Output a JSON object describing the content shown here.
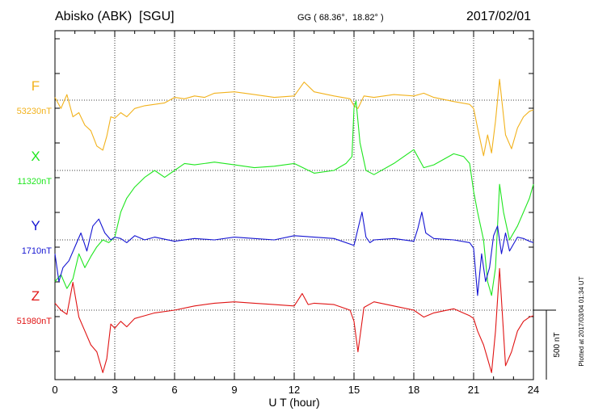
{
  "header": {
    "station": "Abisko (ABK)  [SGU]",
    "coords": "GG ( 68.36°,  18.82° )",
    "date": "2017/02/01"
  },
  "colors": {
    "F": "#f2b21c",
    "X": "#1fe61f",
    "Y": "#1414d2",
    "Z": "#e01414"
  },
  "chart_data": {
    "type": "line",
    "xlabel": "U T (hour)",
    "xlim": [
      0,
      24
    ],
    "xticks": [
      "0",
      "3",
      "6",
      "9",
      "12",
      "15",
      "18",
      "21",
      "24"
    ],
    "scale_bar": "500 nT",
    "plotted_note": "Plotted at 2017/03/04 01:34 UT",
    "series": [
      {
        "name": "F",
        "baseline_label": "53230nT",
        "color": "#f2b21c",
        "baseline_nT": 53230,
        "x": [
          0,
          0.3,
          0.6,
          0.9,
          1.2,
          1.5,
          1.8,
          2.1,
          2.4,
          2.6,
          2.8,
          3.0,
          3.3,
          3.6,
          4.0,
          4.5,
          5.0,
          5.5,
          6.0,
          6.5,
          7.0,
          7.5,
          8.0,
          9.0,
          10.0,
          11.0,
          12.0,
          12.5,
          13.0,
          14.0,
          14.8,
          15.0,
          15.2,
          15.5,
          16.0,
          17.0,
          18.0,
          18.5,
          19.0,
          20.0,
          20.8,
          21.0,
          21.2,
          21.5,
          21.7,
          21.9,
          22.1,
          22.3,
          22.6,
          22.9,
          23.2,
          23.5,
          23.8,
          24.0
        ],
        "y": [
          20,
          -60,
          40,
          -120,
          -90,
          -180,
          -220,
          -330,
          -360,
          -260,
          -120,
          -130,
          -90,
          -120,
          -60,
          -40,
          -30,
          -20,
          20,
          10,
          30,
          20,
          50,
          60,
          40,
          20,
          30,
          130,
          60,
          30,
          10,
          -40,
          -60,
          30,
          20,
          40,
          30,
          50,
          20,
          -10,
          -30,
          -60,
          -200,
          -400,
          -250,
          -380,
          -150,
          150,
          -250,
          -350,
          -200,
          -120,
          -80,
          -70
        ]
      },
      {
        "name": "X",
        "baseline_label": "11320nT",
        "color": "#1fe61f",
        "baseline_nT": 11320,
        "x": [
          0,
          0.3,
          0.6,
          0.9,
          1.2,
          1.5,
          1.8,
          2.1,
          2.4,
          2.7,
          3.0,
          3.3,
          3.6,
          4.0,
          4.5,
          5.0,
          5.5,
          6.0,
          6.5,
          7.0,
          8.0,
          9.0,
          10.0,
          11.0,
          12.0,
          13.0,
          14.0,
          14.6,
          14.9,
          15.0,
          15.1,
          15.3,
          15.6,
          16.0,
          17.0,
          18.0,
          18.5,
          19.0,
          20.0,
          20.5,
          20.8,
          21.0,
          21.2,
          21.5,
          21.7,
          21.9,
          22.1,
          22.3,
          22.5,
          22.8,
          23.2,
          23.5,
          23.8,
          24.0
        ],
        "y": [
          -800,
          -750,
          -850,
          -780,
          -600,
          -700,
          -620,
          -550,
          -500,
          -520,
          -480,
          -300,
          -200,
          -120,
          -50,
          0,
          -50,
          0,
          50,
          40,
          60,
          40,
          20,
          30,
          50,
          -20,
          0,
          50,
          100,
          450,
          500,
          200,
          0,
          -30,
          50,
          150,
          20,
          40,
          120,
          100,
          50,
          -150,
          -300,
          -500,
          -800,
          -900,
          -700,
          -100,
          -300,
          -500,
          -400,
          -300,
          -200,
          -100
        ]
      },
      {
        "name": "Y",
        "baseline_label": "1710nT",
        "color": "#1414d2",
        "baseline_nT": 1710,
        "x": [
          0,
          0.2,
          0.4,
          0.7,
          1.0,
          1.3,
          1.6,
          1.9,
          2.2,
          2.5,
          2.8,
          3.0,
          3.3,
          3.6,
          4.0,
          4.5,
          5.0,
          6.0,
          7.0,
          8.0,
          9.0,
          10.0,
          11.0,
          12.0,
          13.0,
          14.0,
          15.0,
          15.2,
          15.4,
          15.6,
          15.8,
          16.0,
          17.0,
          18.0,
          18.2,
          18.4,
          18.6,
          19.0,
          20.0,
          20.8,
          21.0,
          21.2,
          21.4,
          21.6,
          21.8,
          22.0,
          22.2,
          22.4,
          22.6,
          22.8,
          23.2,
          23.5,
          23.8,
          24.0
        ],
        "y": [
          -100,
          -300,
          -200,
          -150,
          -50,
          50,
          -80,
          100,
          150,
          50,
          0,
          20,
          10,
          -20,
          30,
          0,
          20,
          -10,
          10,
          0,
          20,
          10,
          0,
          30,
          20,
          10,
          -40,
          80,
          200,
          20,
          -20,
          0,
          10,
          -10,
          80,
          200,
          50,
          10,
          0,
          -20,
          -60,
          -400,
          -100,
          -300,
          -200,
          30,
          100,
          -100,
          50,
          -80,
          20,
          10,
          -10,
          -20
        ]
      },
      {
        "name": "Z",
        "baseline_label": "51980nT",
        "color": "#e01414",
        "baseline_nT": 51980,
        "x": [
          0,
          0.3,
          0.6,
          0.9,
          1.2,
          1.5,
          1.8,
          2.1,
          2.4,
          2.6,
          2.8,
          3.0,
          3.3,
          3.6,
          4.0,
          4.5,
          5.0,
          6.0,
          7.0,
          8.0,
          9.0,
          10.0,
          11.0,
          12.0,
          12.4,
          12.7,
          13.0,
          14.0,
          14.8,
          15.0,
          15.2,
          15.5,
          16.0,
          17.0,
          18.0,
          18.5,
          19.0,
          20.0,
          20.8,
          21.0,
          21.2,
          21.5,
          21.7,
          21.9,
          22.1,
          22.3,
          22.6,
          22.9,
          23.2,
          23.5,
          23.8,
          24.0
        ],
        "y": [
          50,
          0,
          -30,
          200,
          -50,
          -150,
          -250,
          -300,
          -450,
          -350,
          -100,
          -130,
          -80,
          -120,
          -60,
          -40,
          -20,
          0,
          30,
          50,
          60,
          50,
          40,
          30,
          120,
          40,
          50,
          40,
          0,
          -80,
          -300,
          20,
          60,
          30,
          0,
          -50,
          -20,
          10,
          -40,
          -60,
          -150,
          -250,
          -350,
          -450,
          -150,
          300,
          -400,
          -300,
          -150,
          -80,
          -50,
          -40
        ]
      }
    ]
  }
}
